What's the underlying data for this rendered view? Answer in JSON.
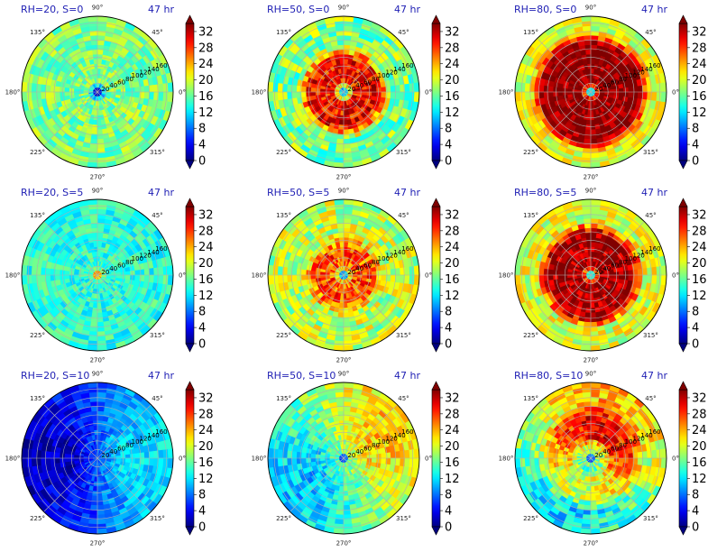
{
  "chart_data": {
    "type": "heatmap",
    "layout": "3x3 grid of polar plots, each with a vertical colorbar",
    "colormap": "jet",
    "colorbar": {
      "ticks": [
        0,
        4,
        8,
        12,
        16,
        20,
        24,
        28,
        32
      ],
      "range": [
        0,
        34
      ],
      "extend": "both"
    },
    "polar_axes": {
      "angle_labels": [
        "0°",
        "45°",
        "90°",
        "135°",
        "180°",
        "225°",
        "270°",
        "315°"
      ],
      "radial_labels": [
        "20",
        "40",
        "60",
        "80",
        "100",
        "120",
        "140",
        "160"
      ],
      "rmax": 175,
      "grid": true
    },
    "time_label": "47 hr",
    "panels": [
      {
        "title": "RH=20, S=0",
        "field": {
          "background": 17,
          "core_value": 3,
          "core_radius": 14,
          "ring_value": null,
          "ring_inner": null,
          "ring_outer": null,
          "asym_angle": null,
          "asym_amp": 0,
          "noise": 3.5
        }
      },
      {
        "title": "RH=50, S=0",
        "field": {
          "background": 17,
          "core_value": 11,
          "core_radius": 12,
          "ring_value": 30,
          "ring_inner": 18,
          "ring_outer": 95,
          "asym_angle": null,
          "asym_amp": 0,
          "noise": 4.5
        }
      },
      {
        "title": "RH=80, S=0",
        "field": {
          "background": 20,
          "core_value": 13,
          "core_radius": 10,
          "ring_value": 34,
          "ring_inner": 14,
          "ring_outer": 128,
          "asym_angle": null,
          "asym_amp": 0,
          "noise": 3.5
        }
      },
      {
        "title": "RH=20, S=5",
        "field": {
          "background": 14,
          "core_value": 24,
          "core_radius": 12,
          "ring_value": null,
          "ring_inner": null,
          "ring_outer": null,
          "asym_angle": null,
          "asym_amp": 0,
          "noise": 3.0
        }
      },
      {
        "title": "RH=50, S=5",
        "field": {
          "background": 19,
          "core_value": 11,
          "core_radius": 10,
          "ring_value": 27,
          "ring_inner": 18,
          "ring_outer": 82,
          "asym_angle": null,
          "asym_amp": 0,
          "noise": 4.5
        }
      },
      {
        "title": "RH=80, S=5",
        "field": {
          "background": 20,
          "core_value": 13,
          "core_radius": 9,
          "ring_value": 33,
          "ring_inner": 14,
          "ring_outer": 112,
          "asym_angle": null,
          "asym_amp": 0,
          "noise": 4.0
        }
      },
      {
        "title": "RH=20, S=10",
        "field": {
          "background": 7,
          "core_value": 7,
          "core_radius": 0,
          "ring_value": null,
          "ring_inner": null,
          "ring_outer": null,
          "asym_angle": 0,
          "asym_amp": 5,
          "noise": 2.5
        }
      },
      {
        "title": "RH=50, S=10",
        "field": {
          "background": 17,
          "core_value": 6,
          "core_radius": 8,
          "ring_value": null,
          "ring_inner": null,
          "ring_outer": null,
          "asym_angle": 30,
          "asym_amp": 6,
          "noise": 3.5
        }
      },
      {
        "title": "RH=80, S=10",
        "field": {
          "background": 18,
          "core_value": 8,
          "core_radius": 10,
          "ring_value": 25,
          "ring_inner": 40,
          "ring_outer": 110,
          "asym_angle": 70,
          "asym_amp": 6,
          "noise": 4.0
        }
      }
    ]
  }
}
